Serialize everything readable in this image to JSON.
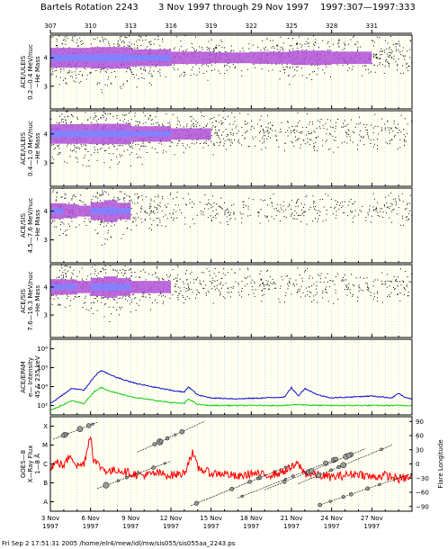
{
  "header": {
    "rotation": "Bartels Rotation 2243",
    "date_range": "3 Nov 1997 through 29 Nov 1997",
    "doy_range": "1997:307—1997:333"
  },
  "doy_ticks": [
    "307",
    "310",
    "313",
    "316",
    "319",
    "322",
    "325",
    "328",
    "331"
  ],
  "date_ticks": [
    {
      "day": "3 Nov",
      "year": "1997"
    },
    {
      "day": "6 Nov",
      "year": "1997"
    },
    {
      "day": "9 Nov",
      "year": "1997"
    },
    {
      "day": "12 Nov",
      "year": "1997"
    },
    {
      "day": "15 Nov",
      "year": "1997"
    },
    {
      "day": "18 Nov",
      "year": "1997"
    },
    {
      "day": "21 Nov",
      "year": "1997"
    },
    {
      "day": "24 Nov",
      "year": "1997"
    },
    {
      "day": "27 Nov",
      "year": "1997"
    }
  ],
  "footer": "Fri Sep  2 17:51:31 2005    /home/elr4/mew/idl/mw/sis055/sis055aa_2243.ps",
  "colors": {
    "scatter": "#000000",
    "mass_band": "#b050d8",
    "mass_core": "#7e84ff",
    "gridline": "#a8c8f0",
    "epam_upper": "#1010cc",
    "epam_lower": "#10cc10",
    "xray": "#ff0000",
    "flare": "#000000"
  },
  "chart_data": [
    {
      "type": "scatter",
      "ylabel_lines": [
        "ACE/ULEIS",
        "0.2—0.4 MeV/nuc",
        "~He Mass"
      ],
      "y_ticks": [
        "4",
        "3"
      ],
      "y_tick_values": [
        4,
        3
      ],
      "ylim": [
        2.2,
        4.8
      ],
      "x": [
        3.0,
        6.0,
        9.0,
        12.0,
        15.0,
        18.0,
        21.0,
        24.0,
        27.0,
        30.0
      ],
      "values": [
        4.0,
        4.0,
        4.0,
        4.0,
        4.0,
        4.0,
        4.0,
        4.0,
        4.0,
        4.0
      ],
      "band_strength": [
        0.75,
        0.9,
        0.95,
        0.3,
        0.4,
        0.1,
        0.55,
        0.4,
        0.3,
        0.15
      ]
    },
    {
      "type": "scatter",
      "ylabel_lines": [
        "ACE/ULEIS",
        "0.4—1.0 MeV/nuc",
        "~He Mass"
      ],
      "y_ticks": [
        "4",
        "3"
      ],
      "y_tick_values": [
        4,
        3
      ],
      "ylim": [
        2.2,
        4.8
      ],
      "x": [
        3.0,
        6.0,
        9.0,
        12.0,
        15.0,
        18.0,
        21.0,
        24.0,
        27.0,
        30.0
      ],
      "values": [
        4.0,
        4.0,
        4.0,
        4.0,
        4.0,
        4.0,
        4.0,
        4.0,
        4.0,
        4.0
      ],
      "band_strength": [
        0.7,
        0.85,
        0.8,
        0.25,
        0.3,
        0.15,
        0.15,
        0.1,
        0.1,
        0.1
      ]
    },
    {
      "type": "scatter",
      "ylabel_lines": [
        "ACE/SIS",
        "4.5—7.6 MeV/nuc",
        "~He Mass"
      ],
      "y_ticks": [
        "4",
        "3"
      ],
      "y_tick_values": [
        4,
        3
      ],
      "ylim": [
        2.2,
        4.8
      ],
      "x": [
        3.0,
        4.0,
        5.0,
        6.0,
        7.0,
        8.0,
        9.0,
        12.0,
        15.0,
        18.0,
        21.0,
        24.0,
        27.0,
        29.0
      ],
      "values": [
        4.0,
        4.0,
        4.0,
        4.0,
        4.0,
        4.0,
        4.0,
        4.0,
        4.0,
        4.0,
        4.0,
        4.0,
        4.0,
        4.0
      ],
      "band_strength": [
        0.3,
        0.8,
        0.1,
        0.4,
        0.95,
        0.9,
        0.3,
        0.1,
        0.05,
        0.03,
        0.03,
        0.03,
        0.03,
        0.1
      ]
    },
    {
      "type": "scatter",
      "ylabel_lines": [
        "ACE/SIS",
        "7.6—16.3 MeV/nuc",
        "~He Mass"
      ],
      "y_ticks": [
        "4",
        "3"
      ],
      "y_tick_values": [
        4,
        3
      ],
      "ylim": [
        2.2,
        4.8
      ],
      "x": [
        3.0,
        4.0,
        5.0,
        6.0,
        7.0,
        8.0,
        9.0,
        12.0,
        15.0,
        18.0,
        21.0,
        24.0,
        27.0,
        29.0
      ],
      "values": [
        4.0,
        4.0,
        4.0,
        4.0,
        4.0,
        4.0,
        4.0,
        4.0,
        4.0,
        4.0,
        4.0,
        4.0,
        4.0,
        4.0
      ],
      "band_strength": [
        0.3,
        0.85,
        0.2,
        0.5,
        0.95,
        0.9,
        0.5,
        0.2,
        0.1,
        0.1,
        0.1,
        0.05,
        0.05,
        0.15
      ]
    },
    {
      "type": "line",
      "ylabel_lines": [
        "ACE/EPAM",
        "e— Intensity",
        "45 & 235 keV"
      ],
      "y_ticks": [
        "10⁸",
        "10⁶",
        "10⁴",
        "10²"
      ],
      "y_tick_values": [
        8,
        6,
        4,
        2
      ],
      "ylim": [
        1.0,
        9.0
      ],
      "series": [
        {
          "color_key": "epam_upper",
          "x": [
            3.0,
            4.0,
            4.6,
            5.5,
            6.3,
            6.8,
            7.5,
            8.5,
            9.5,
            10.5,
            12.0,
            13.0,
            13.3,
            14.0,
            15.0,
            17.0,
            19.0,
            20.5,
            21.0,
            21.5,
            22.0,
            23.0,
            24.0,
            25.5,
            27.0,
            28.5,
            29.0,
            29.5,
            30.0
          ],
          "values": [
            2.2,
            3.2,
            3.8,
            3.6,
            5.1,
            5.7,
            5.2,
            4.7,
            4.3,
            4.0,
            3.6,
            3.4,
            4.0,
            3.1,
            2.8,
            2.7,
            2.8,
            2.9,
            3.9,
            3.0,
            3.8,
            3.1,
            2.8,
            2.9,
            3.0,
            2.8,
            3.3,
            2.8,
            2.7
          ]
        },
        {
          "color_key": "epam_lower",
          "x": [
            3.0,
            4.0,
            4.6,
            5.5,
            6.3,
            6.8,
            7.5,
            8.5,
            9.5,
            10.5,
            12.0,
            13.0,
            13.3,
            14.0,
            15.0,
            17.0,
            19.0,
            20.5,
            21.5,
            23.0,
            25.0,
            27.0,
            29.0,
            30.0
          ],
          "values": [
            1.5,
            2.1,
            2.5,
            2.2,
            3.5,
            3.9,
            3.5,
            3.1,
            2.8,
            2.6,
            2.3,
            2.2,
            2.7,
            2.1,
            2.0,
            2.0,
            2.0,
            2.0,
            2.1,
            2.0,
            2.0,
            2.0,
            2.0,
            2.0
          ]
        }
      ]
    },
    {
      "type": "line",
      "ylabel_lines": [
        "GOES—8",
        "X—Ray Flux",
        "1—8 Å"
      ],
      "y_ticks": [
        "X",
        "M",
        "C",
        "B",
        "A"
      ],
      "y_tick_values": [
        4.5,
        3.5,
        2.5,
        1.5,
        0.5
      ],
      "y2_ticks": [
        "90",
        "60",
        "30",
        "0",
        "−30",
        "−60",
        "−90"
      ],
      "y2_tick_values": [
        90,
        60,
        30,
        0,
        -30,
        -60,
        -90
      ],
      "y2_label": "Flare Longitude",
      "ylim": [
        0,
        5
      ],
      "y2lim": [
        -100,
        100
      ],
      "series": [
        {
          "color_key": "xray",
          "x": [
            3.0,
            3.5,
            4.0,
            4.5,
            5.0,
            5.5,
            6.0,
            6.2,
            6.5,
            7.0,
            7.5,
            8.0,
            9.0,
            10.0,
            11.0,
            12.0,
            13.0,
            13.3,
            13.6,
            14.0,
            15.0,
            16.0,
            17.0,
            18.0,
            19.0,
            20.0,
            21.0,
            21.5,
            22.0,
            23.0,
            24.0,
            25.0,
            26.0,
            27.0,
            28.0,
            29.0,
            30.0
          ],
          "values": [
            2.3,
            2.6,
            2.4,
            3.0,
            2.4,
            2.5,
            4.1,
            2.8,
            2.5,
            2.2,
            2.1,
            2.2,
            2.0,
            1.9,
            2.0,
            1.9,
            2.0,
            2.6,
            3.1,
            2.3,
            2.0,
            2.0,
            1.8,
            2.0,
            1.9,
            2.0,
            2.3,
            2.5,
            2.0,
            1.9,
            1.8,
            1.9,
            2.0,
            1.8,
            1.9,
            1.7,
            1.8
          ]
        }
      ],
      "flare_longitude_tracks": [
        {
          "x": [
            3.2,
            6.5
          ],
          "lon": [
            52,
            88
          ]
        },
        {
          "x": [
            6.5,
            12.0
          ],
          "lon": [
            -52,
            6
          ]
        },
        {
          "x": [
            9.5,
            14.5
          ],
          "lon": [
            25,
            90
          ]
        },
        {
          "x": [
            13.5,
            21.0
          ],
          "lon": [
            -88,
            -2
          ]
        },
        {
          "x": [
            17.0,
            24.5
          ],
          "lon": [
            -72,
            12
          ]
        },
        {
          "x": [
            19.0,
            26.5
          ],
          "lon": [
            -55,
            32
          ]
        },
        {
          "x": [
            21.5,
            28.5
          ],
          "lon": [
            -42,
            40
          ]
        },
        {
          "x": [
            23.0,
            30.0
          ],
          "lon": [
            -88,
            -20
          ]
        }
      ]
    }
  ]
}
